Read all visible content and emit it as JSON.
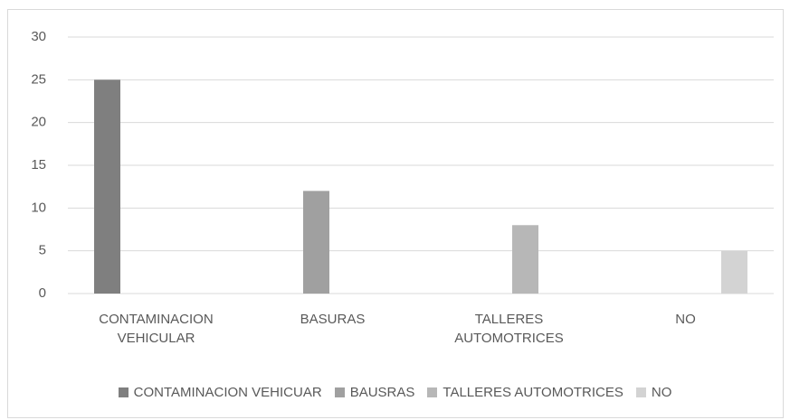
{
  "chart_data": {
    "type": "bar",
    "categories": [
      "CONTAMINACION VEHICULAR",
      "BASURAS",
      "TALLERES AUTOMOTRICES",
      "NO"
    ],
    "series": [
      {
        "name": "CONTAMINACION VEHICUAR",
        "color": "#7f7f7f",
        "values": [
          25,
          null,
          null,
          null
        ]
      },
      {
        "name": "BAUSRAS",
        "color": "#a0a0a0",
        "values": [
          null,
          12,
          null,
          null
        ]
      },
      {
        "name": "TALLERES AUTOMOTRICES",
        "color": "#b7b7b7",
        "values": [
          null,
          null,
          8,
          null
        ]
      },
      {
        "name": "NO",
        "color": "#d3d3d3",
        "values": [
          null,
          null,
          null,
          5
        ]
      }
    ],
    "ylim": [
      0,
      30
    ],
    "yticks": [
      0,
      5,
      10,
      15,
      20,
      25,
      30
    ],
    "grid": true,
    "legend": "bottom"
  }
}
